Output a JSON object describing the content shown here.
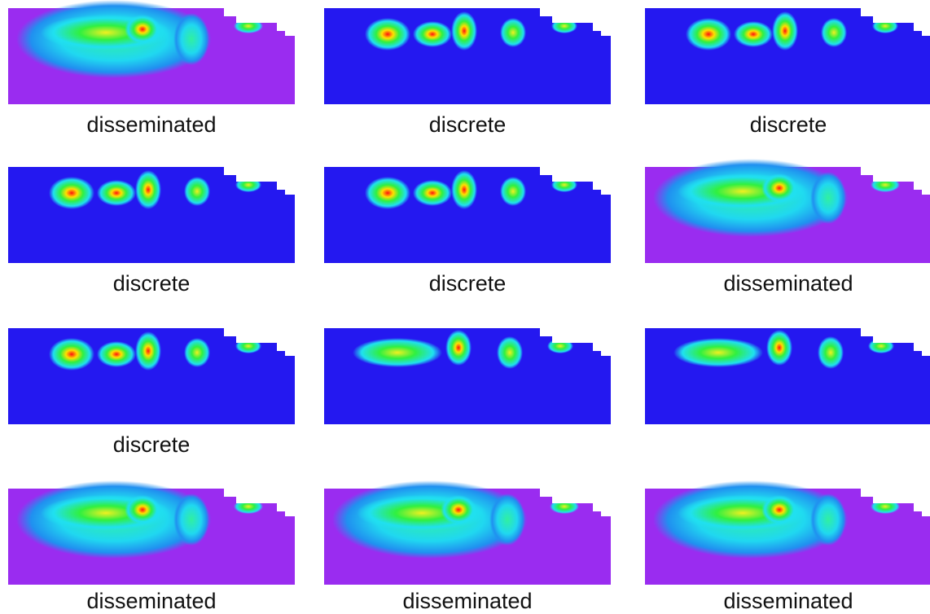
{
  "labels": [
    "disseminated",
    "discrete",
    "discrete",
    "discrete",
    "discrete",
    "disseminated",
    "discrete",
    null,
    null,
    "disseminated",
    "disseminated",
    "disseminated"
  ]
}
